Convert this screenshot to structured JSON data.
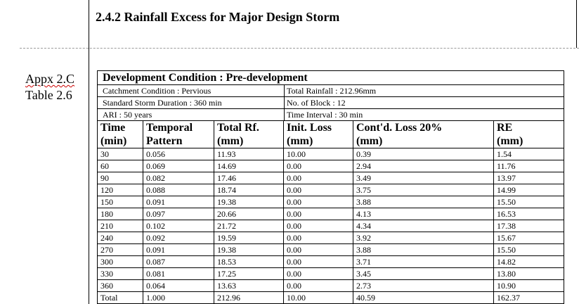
{
  "section": {
    "heading": "2.4.2 Rainfall Excess for Major Design Storm"
  },
  "side_label": {
    "line1": "Appx 2.C",
    "line2": "Table 2.6"
  },
  "table": {
    "title": "Development Condition : Pre-development",
    "info": [
      {
        "left": "Catchment Condition : Pervious",
        "right": "Total Rainfall : 212.96mm"
      },
      {
        "left": "Standard Storm Duration : 360 min",
        "right": "No. of Block : 12"
      },
      {
        "left": "ARI : 50 years",
        "right": "Time Interval : 30 min"
      }
    ],
    "headers": [
      {
        "line1": "Time",
        "line2": "(min)"
      },
      {
        "line1": "Temporal",
        "line2": "Pattern"
      },
      {
        "line1": "Total Rf.",
        "line2": "(mm)"
      },
      {
        "line1": "Init. Loss",
        "line2": "(mm)"
      },
      {
        "line1": "Cont'd. Loss 20%",
        "line2": "(mm)"
      },
      {
        "line1": "RE",
        "line2": "(mm)"
      }
    ],
    "rows": [
      [
        "30",
        "0.056",
        "11.93",
        "10.00",
        "0.39",
        "1.54"
      ],
      [
        "60",
        "0.069",
        "14.69",
        "0.00",
        "2.94",
        "11.76"
      ],
      [
        "90",
        "0.082",
        "17.46",
        "0.00",
        "3.49",
        "13.97"
      ],
      [
        "120",
        "0.088",
        "18.74",
        "0.00",
        "3.75",
        "14.99"
      ],
      [
        "150",
        "0.091",
        "19.38",
        "0.00",
        "3.88",
        "15.50"
      ],
      [
        "180",
        "0.097",
        "20.66",
        "0.00",
        "4.13",
        "16.53"
      ],
      [
        "210",
        "0.102",
        "21.72",
        "0.00",
        "4.34",
        "17.38"
      ],
      [
        "240",
        "0.092",
        "19.59",
        "0.00",
        "3.92",
        "15.67"
      ],
      [
        "270",
        "0.091",
        "19.38",
        "0.00",
        "3.88",
        "15.50"
      ],
      [
        "300",
        "0.087",
        "18.53",
        "0.00",
        "3.71",
        "14.82"
      ],
      [
        "330",
        "0.081",
        "17.25",
        "0.00",
        "3.45",
        "13.80"
      ],
      [
        "360",
        "0.064",
        "13.63",
        "0.00",
        "2.73",
        "10.90"
      ],
      [
        "Total",
        "1.000",
        "212.96",
        "10.00",
        "40.59",
        "162.37"
      ]
    ]
  }
}
